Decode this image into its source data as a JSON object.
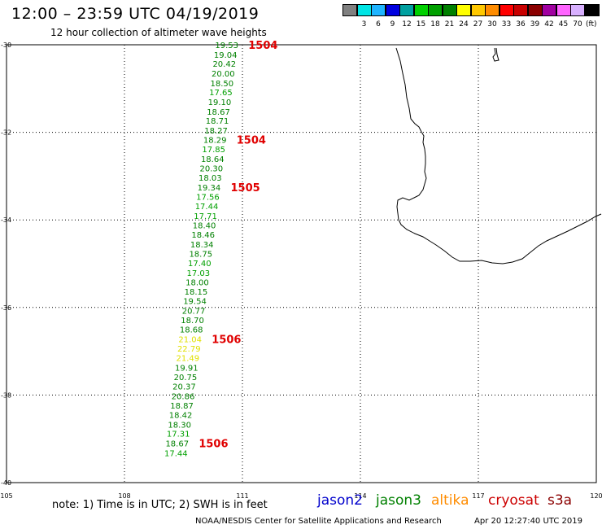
{
  "header": {
    "title": "12:00 – 23:59 UTC 04/19/2019",
    "subtitle": "12 hour collection of altimeter wave heights"
  },
  "color_scale": {
    "unit": "(ft)",
    "bins": [
      {
        "label": "",
        "color": "#808080"
      },
      {
        "label": "3",
        "color": "#00e5e5"
      },
      {
        "label": "6",
        "color": "#1eb4ff"
      },
      {
        "label": "9",
        "color": "#0000e0"
      },
      {
        "label": "12",
        "color": "#00a0a0"
      },
      {
        "label": "15",
        "color": "#00d000"
      },
      {
        "label": "18",
        "color": "#00a000"
      },
      {
        "label": "21",
        "color": "#008000"
      },
      {
        "label": "24",
        "color": "#ffff00"
      },
      {
        "label": "27",
        "color": "#ffc800"
      },
      {
        "label": "30",
        "color": "#ff8c00"
      },
      {
        "label": "33",
        "color": "#ff0000"
      },
      {
        "label": "36",
        "color": "#c80000"
      },
      {
        "label": "39",
        "color": "#8b0000"
      },
      {
        "label": "42",
        "color": "#a000a0"
      },
      {
        "label": "45",
        "color": "#ff64ff"
      },
      {
        "label": "70",
        "color": "#d8b0ff"
      },
      {
        "label": "",
        "color": "#000000"
      }
    ]
  },
  "map": {
    "lat_labels": [
      "-30",
      "-32",
      "-34",
      "-36",
      "-38",
      "-40"
    ],
    "lon_labels": [
      "105",
      "108",
      "111",
      "114",
      "117",
      "120"
    ],
    "lat_values": [
      -30,
      -32,
      -34,
      -36,
      -38,
      -40
    ],
    "lon_values": [
      105,
      108,
      111,
      114,
      117,
      120
    ]
  },
  "observations": [
    {
      "value": "19.53",
      "color": "#008000",
      "lat": -30.0,
      "lon": 110.6
    },
    {
      "value": "19.04",
      "color": "#008000",
      "lat": -30.22,
      "lon": 110.57
    },
    {
      "value": "20.42",
      "color": "#008000",
      "lat": -30.43,
      "lon": 110.54
    },
    {
      "value": "20.00",
      "color": "#008000",
      "lat": -30.65,
      "lon": 110.51
    },
    {
      "value": "18.50",
      "color": "#008000",
      "lat": -30.87,
      "lon": 110.48
    },
    {
      "value": "17.65",
      "color": "#00a000",
      "lat": -31.08,
      "lon": 110.45
    },
    {
      "value": "19.10",
      "color": "#008000",
      "lat": -31.3,
      "lon": 110.42
    },
    {
      "value": "18.67",
      "color": "#008000",
      "lat": -31.52,
      "lon": 110.39
    },
    {
      "value": "18.71",
      "color": "#008000",
      "lat": -31.73,
      "lon": 110.36
    },
    {
      "value": "18.27",
      "color": "#008000",
      "lat": -31.95,
      "lon": 110.33
    },
    {
      "value": "18.29",
      "color": "#008000",
      "lat": -32.17,
      "lon": 110.3
    },
    {
      "value": "17.85",
      "color": "#00a000",
      "lat": -32.38,
      "lon": 110.27
    },
    {
      "value": "18.64",
      "color": "#008000",
      "lat": -32.6,
      "lon": 110.24
    },
    {
      "value": "20.30",
      "color": "#008000",
      "lat": -32.82,
      "lon": 110.21
    },
    {
      "value": "18.03",
      "color": "#008000",
      "lat": -33.03,
      "lon": 110.18
    },
    {
      "value": "19.34",
      "color": "#008000",
      "lat": -33.25,
      "lon": 110.15
    },
    {
      "value": "17.56",
      "color": "#00a000",
      "lat": -33.47,
      "lon": 110.12
    },
    {
      "value": "17.44",
      "color": "#00a000",
      "lat": -33.68,
      "lon": 110.09
    },
    {
      "value": "17.71",
      "color": "#00a000",
      "lat": -33.9,
      "lon": 110.06
    },
    {
      "value": "18.40",
      "color": "#008000",
      "lat": -34.12,
      "lon": 110.03
    },
    {
      "value": "18.46",
      "color": "#008000",
      "lat": -34.33,
      "lon": 110.0
    },
    {
      "value": "18.34",
      "color": "#008000",
      "lat": -34.55,
      "lon": 109.97
    },
    {
      "value": "18.75",
      "color": "#008000",
      "lat": -34.77,
      "lon": 109.94
    },
    {
      "value": "17.40",
      "color": "#00a000",
      "lat": -34.98,
      "lon": 109.91
    },
    {
      "value": "17.03",
      "color": "#00a000",
      "lat": -35.2,
      "lon": 109.88
    },
    {
      "value": "18.00",
      "color": "#008000",
      "lat": -35.42,
      "lon": 109.85
    },
    {
      "value": "18.15",
      "color": "#008000",
      "lat": -35.63,
      "lon": 109.82
    },
    {
      "value": "19.54",
      "color": "#008000",
      "lat": -35.85,
      "lon": 109.79
    },
    {
      "value": "20.77",
      "color": "#008000",
      "lat": -36.07,
      "lon": 109.76
    },
    {
      "value": "18.70",
      "color": "#008000",
      "lat": -36.28,
      "lon": 109.73
    },
    {
      "value": "18.68",
      "color": "#008000",
      "lat": -36.5,
      "lon": 109.7
    },
    {
      "value": "21.04",
      "color": "#e0e000",
      "lat": -36.72,
      "lon": 109.67
    },
    {
      "value": "22.79",
      "color": "#e0e000",
      "lat": -36.93,
      "lon": 109.64
    },
    {
      "value": "21.49",
      "color": "#e0e000",
      "lat": -37.15,
      "lon": 109.61
    },
    {
      "value": "19.91",
      "color": "#008000",
      "lat": -37.37,
      "lon": 109.58
    },
    {
      "value": "20.75",
      "color": "#008000",
      "lat": -37.58,
      "lon": 109.55
    },
    {
      "value": "20.37",
      "color": "#008000",
      "lat": -37.8,
      "lon": 109.52
    },
    {
      "value": "20.86",
      "color": "#008000",
      "lat": -38.02,
      "lon": 109.49
    },
    {
      "value": "18.87",
      "color": "#008000",
      "lat": -38.23,
      "lon": 109.46
    },
    {
      "value": "18.42",
      "color": "#008000",
      "lat": -38.45,
      "lon": 109.43
    },
    {
      "value": "18.30",
      "color": "#008000",
      "lat": -38.67,
      "lon": 109.4
    },
    {
      "value": "17.31",
      "color": "#00a000",
      "lat": -38.88,
      "lon": 109.37
    },
    {
      "value": "18.67",
      "color": "#008000",
      "lat": -39.1,
      "lon": 109.34
    },
    {
      "value": "17.44",
      "color": "#00a000",
      "lat": -39.32,
      "lon": 109.31
    }
  ],
  "time_markers": [
    {
      "label": "1504",
      "lat": -30.0,
      "lon": 111.15
    },
    {
      "label": "1504",
      "lat": -32.17,
      "lon": 110.85
    },
    {
      "label": "1505",
      "lat": -33.25,
      "lon": 110.7
    },
    {
      "label": "1506",
      "lat": -36.72,
      "lon": 110.22
    },
    {
      "label": "1506",
      "lat": -39.1,
      "lon": 109.89
    }
  ],
  "footer": {
    "note": "note:  1) Time is in UTC;  2) SWH is in feet",
    "satellites": [
      {
        "name": "jason2",
        "color": "#0000cc"
      },
      {
        "name": "jason3",
        "color": "#008000"
      },
      {
        "name": "altika",
        "color": "#ff8c00"
      },
      {
        "name": "cryosat",
        "color": "#cc0000"
      },
      {
        "name": "s3a",
        "color": "#8b0000"
      }
    ],
    "credit": "NOAA/NESDIS Center for Satellite Applications and Research",
    "timestamp": "Apr 20 12:27:40 UTC 2019"
  }
}
